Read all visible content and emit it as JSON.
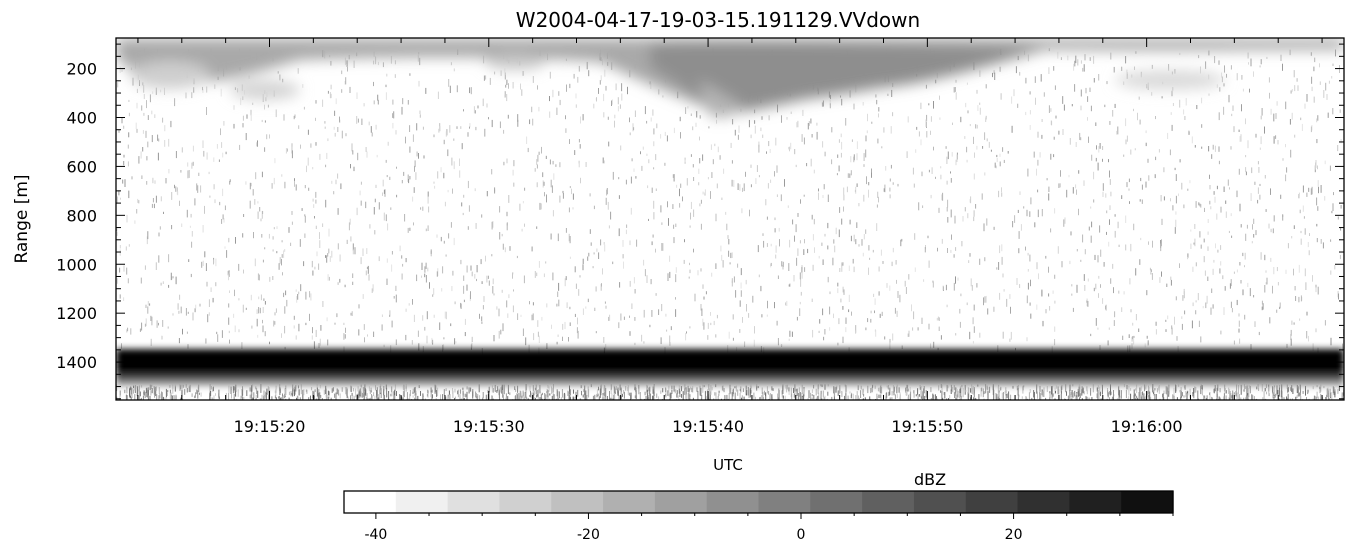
{
  "chart_data": {
    "type": "heatmap",
    "title": "W2004-04-17-19-03-15.191129.VVdown",
    "xlabel": "UTC",
    "ylabel": "Range  [m]",
    "x_tick_labels": [
      "19:15:20",
      "19:15:30",
      "19:15:40",
      "19:15:50",
      "19:16:00"
    ],
    "y_tick_labels": [
      "200",
      "400",
      "600",
      "800",
      "1000",
      "1200",
      "1400"
    ],
    "y_ticks": [
      200,
      400,
      600,
      800,
      1000,
      1200,
      1400
    ],
    "ylim": [
      1555,
      75
    ],
    "xlim_seconds_after_19_15": [
      13,
      69
    ],
    "features": [
      {
        "kind": "cloud_layer",
        "range_m": [
          90,
          400
        ],
        "reflectivity_dbz": [
          -35,
          -15
        ]
      },
      {
        "kind": "noise_speckle",
        "range_m": [
          90,
          1330
        ],
        "reflectivity_dbz": [
          -40,
          -30
        ]
      },
      {
        "kind": "strong_band",
        "range_m": [
          1345,
          1420
        ],
        "reflectivity_dbz": 35
      },
      {
        "kind": "below_band_echo",
        "range_m": [
          1420,
          1555
        ],
        "reflectivity_dbz": [
          -20,
          0
        ]
      }
    ],
    "colorbar": {
      "label": "dBZ",
      "tick_labels": [
        "-40",
        "-20",
        "0",
        "20"
      ],
      "range_dbz": [
        -43,
        35
      ],
      "colors": [
        "#ffffff",
        "#f0f0f0",
        "#e0e0e0",
        "#d0d0d0",
        "#c0c0c0",
        "#b0b0b0",
        "#a0a0a0",
        "#909090",
        "#808080",
        "#707070",
        "#606060",
        "#505050",
        "#404040",
        "#303030",
        "#202020",
        "#101010"
      ]
    }
  }
}
